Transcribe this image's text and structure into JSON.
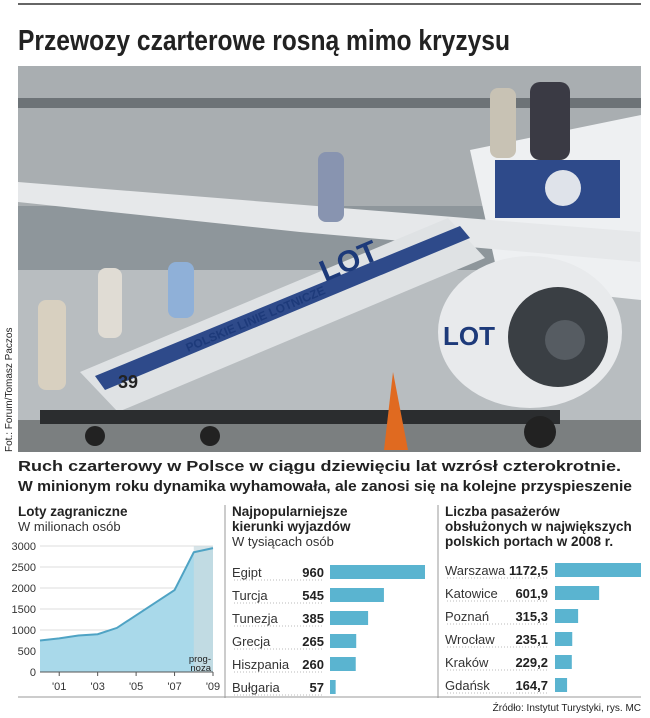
{
  "header": {
    "title": "Przewozy czarterowe rosną mimo kryzysu"
  },
  "photo": {
    "credit": "Fot.: Forum/Tomasz Paczos",
    "texts": [
      "LOT",
      "POLSKIE LINIE LOTNICZE",
      "39",
      "LOT"
    ]
  },
  "lead": [
    "Ruch czarterowy w Polsce w ciągu dziewięciu lat wzrósł czterokrotnie.",
    "W minionym roku dynamika wyhamowała, ale zanosi się na kolejne przyspieszenie"
  ],
  "chart_data": [
    {
      "type": "area",
      "title": [
        "Loty zagraniczne"
      ],
      "subtitle": "W milionach osób",
      "x": [
        2000,
        2001,
        2002,
        2003,
        2004,
        2005,
        2006,
        2007,
        2008,
        2009
      ],
      "values": [
        750,
        800,
        870,
        900,
        1050,
        1350,
        1650,
        1950,
        2850,
        2950
      ],
      "color": "#a9d9ea",
      "line_color": "#4fa3c4",
      "forecast_color": "#c9dbe0",
      "forecast_from": 2008,
      "annotation": [
        "prog-",
        "noza"
      ],
      "xlim": [
        2000,
        2009
      ],
      "ylim": [
        0,
        3000
      ],
      "xticks": [
        {
          "value": 2001,
          "label": "'01"
        },
        {
          "value": 2003,
          "label": "'03"
        },
        {
          "value": 2005,
          "label": "'05"
        },
        {
          "value": 2007,
          "label": "'07"
        },
        {
          "value": 2009,
          "label": "'09"
        }
      ],
      "yticks": [
        0,
        500,
        1000,
        1500,
        2000,
        2500,
        3000
      ],
      "grid": true
    },
    {
      "type": "hbar",
      "title": [
        "Najpopularniejsze",
        "kierunki wyjazdów"
      ],
      "subtitle": "W tysiącach osób",
      "categories": [
        "Egipt",
        "Turcja",
        "Tunezja",
        "Grecja",
        "Hiszpania",
        "Bułgaria"
      ],
      "values": [
        960,
        545,
        385,
        265,
        260,
        57
      ],
      "color": "#5ab4d0"
    },
    {
      "type": "hbar",
      "title": [
        "Liczba pasażerów",
        "obsłużonych w największych",
        "polskich portach w 2008 r."
      ],
      "categories": [
        "Warszawa",
        "Katowice",
        "Poznań",
        "Wrocław",
        "Kraków",
        "Gdańsk"
      ],
      "values": [
        1172.5,
        601.9,
        315.3,
        235.1,
        229.2,
        164.7
      ],
      "value_labels": [
        "1172,5",
        "601,9",
        "315,3",
        "235,1",
        "229,2",
        "164,7"
      ],
      "color": "#5ab4d0"
    }
  ],
  "source": "Źródło: Instytut Turystyki, rys. MC"
}
